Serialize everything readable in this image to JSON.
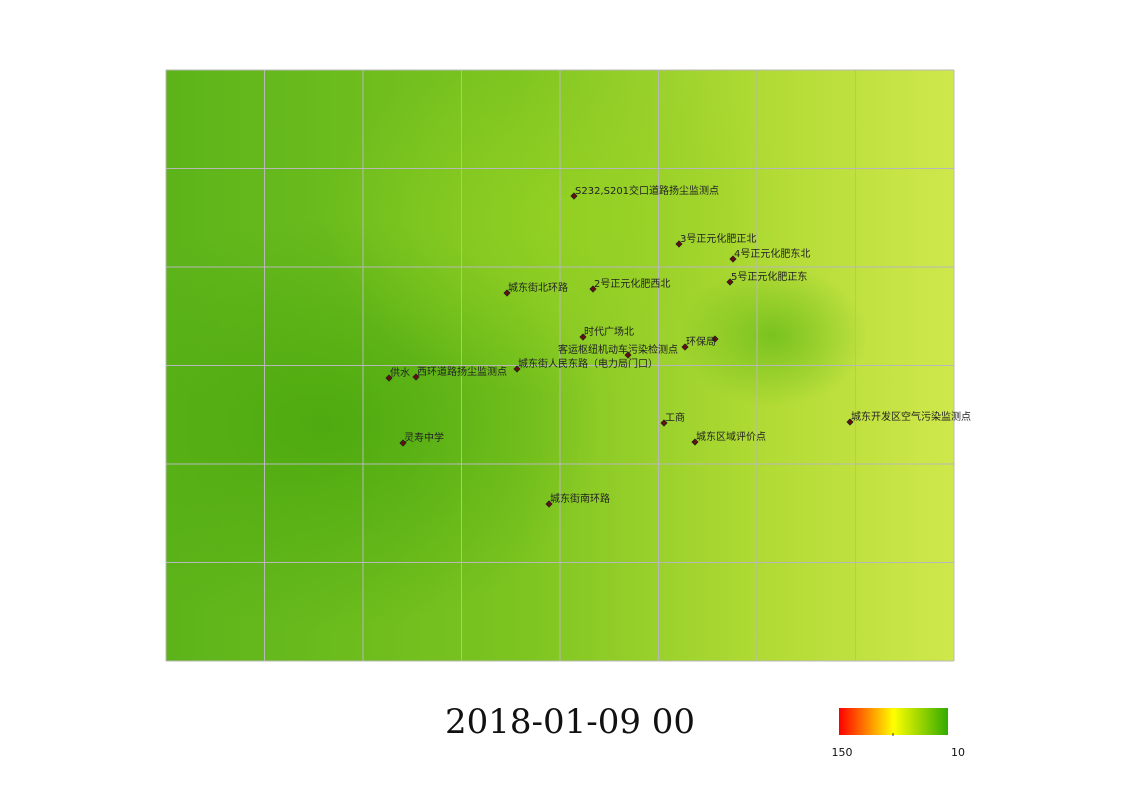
{
  "map": {
    "title": "2018-01-09 00",
    "stations": [
      {
        "label": "S232,S201交口道路扬尘监测点"
      },
      {
        "label": "3号正元化肥正北"
      },
      {
        "label": "4号正元化肥东北"
      },
      {
        "label": "城东街北环路"
      },
      {
        "label": "2号正元化肥西北"
      },
      {
        "label": "5号正元化肥正东"
      },
      {
        "label": "时代广场北"
      },
      {
        "label": "环保局"
      },
      {
        "label": "客运枢纽机动车污染检测点"
      },
      {
        "label": "城东街人民东路（电力局门口）"
      },
      {
        "label": "供水"
      },
      {
        "label": "西环道路扬尘监测点"
      },
      {
        "label": "工商"
      },
      {
        "label": "城东开发区空气污染监测点"
      },
      {
        "label": "灵寿中学"
      },
      {
        "label": "城东区域评价点"
      },
      {
        "label": "城东街南环路"
      }
    ],
    "legend": {
      "high": 150,
      "low": 10
    }
  }
}
